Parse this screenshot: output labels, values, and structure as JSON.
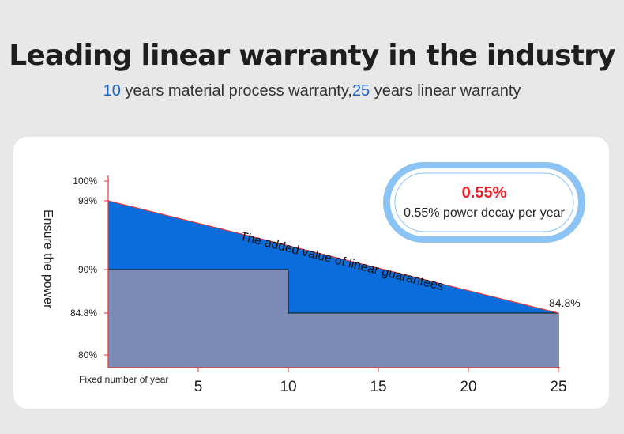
{
  "header": {
    "title": "Leading linear warranty in the industry",
    "subtitle_num1": "10",
    "subtitle_text1": " years material process warranty,",
    "subtitle_num2": "25",
    "subtitle_text2": " years linear warranty"
  },
  "badge": {
    "value": "0.55%",
    "text": "0.55% power decay per year"
  },
  "colors": {
    "accent_blue": "#1667c9",
    "added_value_fill": "#0b6ddb",
    "base_fill": "#7c8ab8",
    "axis_red": "#e03a3a",
    "badge_red": "#e8212b",
    "badge_ring": "#8cc3f5"
  },
  "chart_data": {
    "type": "area",
    "ylabel": "Ensure the power",
    "xlabel": "Fixed number of year",
    "xlim": [
      0,
      25
    ],
    "ylim": [
      80,
      100
    ],
    "x_ticks": [
      5,
      10,
      15,
      20,
      25
    ],
    "y_ticks": [
      "100%",
      "98%",
      "90%",
      "84.8%",
      "80%"
    ],
    "y_tick_values": [
      100,
      98,
      90,
      84.8,
      80
    ],
    "series": [
      {
        "points": [
          [
            0,
            98
          ],
          [
            25,
            84.8
          ]
        ],
        "label": "84.8%"
      },
      {
        "points": [
          [
            0,
            90
          ],
          [
            10,
            90
          ],
          [
            10,
            84.8
          ],
          [
            25,
            84.8
          ]
        ]
      }
    ],
    "annotation": "The added value of linear guarantees"
  }
}
